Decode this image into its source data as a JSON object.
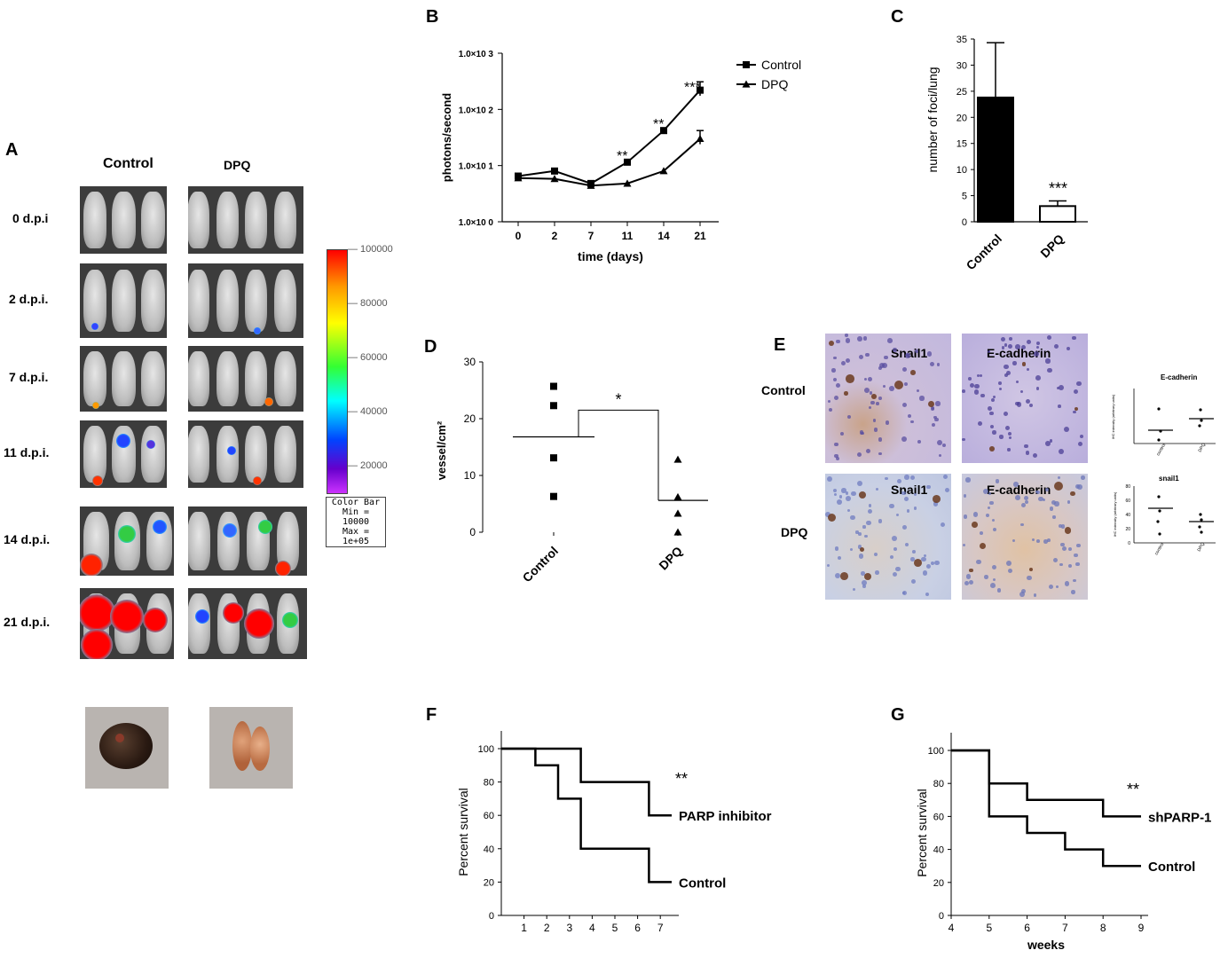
{
  "panelA": {
    "letter": "A",
    "col_control": "Control",
    "col_dpq": "DPQ",
    "rows": [
      "0 d.p.i",
      "2 d.p.i.",
      "7 d.p.i.",
      "11 d.p.i.",
      "14 d.p.i.",
      "21 d.p.i."
    ],
    "colorbar": {
      "ticks": [
        "100000",
        "80000",
        "60000",
        "40000",
        "20000"
      ],
      "caption_title": "Color Bar",
      "caption_min": "Min = 10000",
      "caption_max": "Max = 1e+05"
    }
  },
  "panelB": {
    "letter": "B",
    "chart_data": {
      "type": "line",
      "ylabel": "photons/second",
      "xlabel": "time (days)",
      "x": [
        0,
        2,
        7,
        11,
        14,
        21
      ],
      "y_scale": "log",
      "yticks": [
        "1.0×10 0",
        "1.0×10 1",
        "1.0×10 2",
        "1.0×10 3"
      ],
      "series": [
        {
          "name": "Control",
          "marker": "square",
          "values": [
            6.5,
            8.0,
            4.8,
            11.5,
            42,
            220
          ],
          "err_up": [
            0,
            0,
            0,
            0,
            0,
            90
          ]
        },
        {
          "name": "DPQ",
          "marker": "triangle",
          "values": [
            6.0,
            5.8,
            4.4,
            4.8,
            8.0,
            30
          ],
          "err_up": [
            0,
            0,
            0,
            0,
            0,
            12
          ]
        }
      ],
      "annotations": [
        "**",
        "**",
        "***"
      ]
    }
  },
  "panelC": {
    "letter": "C",
    "chart_data": {
      "type": "bar",
      "ylabel": "number of foci/lung",
      "categories": [
        "Control",
        "DPQ"
      ],
      "values": [
        23.8,
        3.0
      ],
      "err_up": [
        10.5,
        1.0
      ],
      "ylim": [
        0,
        35
      ],
      "yticks": [
        "0",
        "5",
        "10",
        "15",
        "20",
        "25",
        "30",
        "35"
      ],
      "annotation": "***",
      "colors": [
        "#000000",
        "#ffffff"
      ]
    }
  },
  "panelD": {
    "letter": "D",
    "chart_data": {
      "type": "scatter",
      "ylabel": "vessel/cm²",
      "categories": [
        "Control",
        "DPQ"
      ],
      "series": [
        {
          "marker": "square",
          "values": [
            25.7,
            22.3,
            13.1,
            6.3
          ],
          "mean": 16.8
        },
        {
          "marker": "triangle",
          "values": [
            12.8,
            6.2,
            3.3,
            0.0
          ],
          "mean": 5.6
        }
      ],
      "ylim": [
        0,
        30
      ],
      "yticks": [
        "0",
        "10",
        "20",
        "30"
      ],
      "annotation": "*"
    }
  },
  "panelE": {
    "letter": "E",
    "row_control": "Control",
    "row_dpq": "DPQ",
    "stain1": "Snail1",
    "stain2": "E-cadherin",
    "mini_ecad": {
      "title": "E-cadherin",
      "ylabel": "IHC intensity (arbitrary units)",
      "categories": [
        "control",
        "DPQ"
      ]
    },
    "mini_snail": {
      "title": "snail1",
      "ylabel": "IHC intensity (arbitrary units)",
      "categories": [
        "control",
        "DPQ"
      ],
      "yticks": [
        "0",
        "20",
        "40",
        "60",
        "80"
      ]
    }
  },
  "panelF": {
    "letter": "F",
    "chart_data": {
      "type": "line",
      "ylabel": "Percent survival",
      "ylim": [
        0,
        100
      ],
      "xlim": [
        0,
        7.5
      ],
      "yticks": [
        "0",
        "20",
        "40",
        "60",
        "80",
        "100"
      ],
      "xticks": [
        "1",
        "2",
        "3",
        "4",
        "5",
        "6",
        "7"
      ],
      "series": [
        {
          "name": "PARP  inhibitor",
          "steps": [
            [
              0,
              100
            ],
            [
              3.5,
              100
            ],
            [
              3.5,
              80
            ],
            [
              6.5,
              80
            ],
            [
              6.5,
              60
            ],
            [
              7.5,
              60
            ]
          ]
        },
        {
          "name": "Control",
          "steps": [
            [
              0,
              100
            ],
            [
              1.5,
              100
            ],
            [
              1.5,
              90
            ],
            [
              2.5,
              90
            ],
            [
              2.5,
              70
            ],
            [
              3.5,
              70
            ],
            [
              3.5,
              40
            ],
            [
              6.5,
              40
            ],
            [
              6.5,
              20
            ],
            [
              7.5,
              20
            ]
          ]
        }
      ],
      "annotation": "**"
    }
  },
  "panelG": {
    "letter": "G",
    "chart_data": {
      "type": "line",
      "ylabel": "Percent survival",
      "xlabel": "weeks",
      "ylim": [
        0,
        100
      ],
      "xlim": [
        4,
        9
      ],
      "yticks": [
        "0",
        "20",
        "40",
        "60",
        "80",
        "100"
      ],
      "xticks": [
        "4",
        "5",
        "6",
        "7",
        "8",
        "9"
      ],
      "series": [
        {
          "name": "shPARP-1",
          "steps": [
            [
              4,
              100
            ],
            [
              5,
              100
            ],
            [
              5,
              80
            ],
            [
              6,
              80
            ],
            [
              6,
              70
            ],
            [
              8,
              70
            ],
            [
              8,
              60
            ],
            [
              9,
              60
            ]
          ]
        },
        {
          "name": "Control",
          "steps": [
            [
              4,
              100
            ],
            [
              5,
              100
            ],
            [
              5,
              60
            ],
            [
              6,
              60
            ],
            [
              6,
              50
            ],
            [
              7,
              50
            ],
            [
              7,
              40
            ],
            [
              8,
              40
            ],
            [
              8,
              30
            ],
            [
              9,
              30
            ]
          ]
        }
      ],
      "annotation": "**"
    }
  }
}
